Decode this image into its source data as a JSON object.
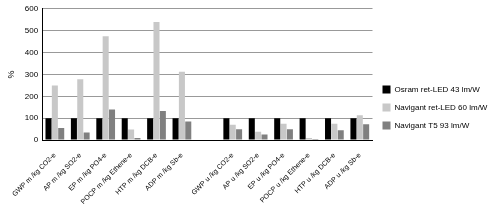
{
  "chart_data": {
    "type": "bar",
    "y_label": "%",
    "categories": [
      "GWP m /kg CO2-e",
      "AP m /kg SO2-e",
      "EP m /kg PO4-e",
      "POCP m /kg Ethene-e",
      "HTP m /kg DCB-e",
      "ADP m /kg Sb-e",
      null,
      "GWP u /kg CO2-e",
      "AP u /kg SO2-e",
      "EP u /kg PO4-e",
      "POCP u /kg Ethene-e",
      "HTP u /kg DCB-e",
      "ADP u /kg Sb-e"
    ],
    "series": [
      {
        "name": "Osram ret-LED 43 lm/W",
        "color": "#000000",
        "values": [
          100,
          100,
          100,
          100,
          100,
          100,
          null,
          100,
          100,
          100,
          100,
          100,
          100
        ]
      },
      {
        "name": "Navigant ret-LED 60 lm/W",
        "color": "#c8c8c8",
        "values": [
          250,
          278,
          475,
          48,
          540,
          312,
          null,
          70,
          38,
          75,
          10,
          75,
          113
        ]
      },
      {
        "name": "Navigant T5 93 lm/W",
        "color": "#808080",
        "values": [
          55,
          35,
          140,
          10,
          133,
          85,
          null,
          50,
          25,
          50,
          5,
          45,
          72
        ]
      }
    ],
    "ylim": [
      0,
      600
    ],
    "yticks": [
      0,
      100,
      200,
      300,
      400,
      500,
      600
    ],
    "grid": true,
    "legend": "right"
  }
}
